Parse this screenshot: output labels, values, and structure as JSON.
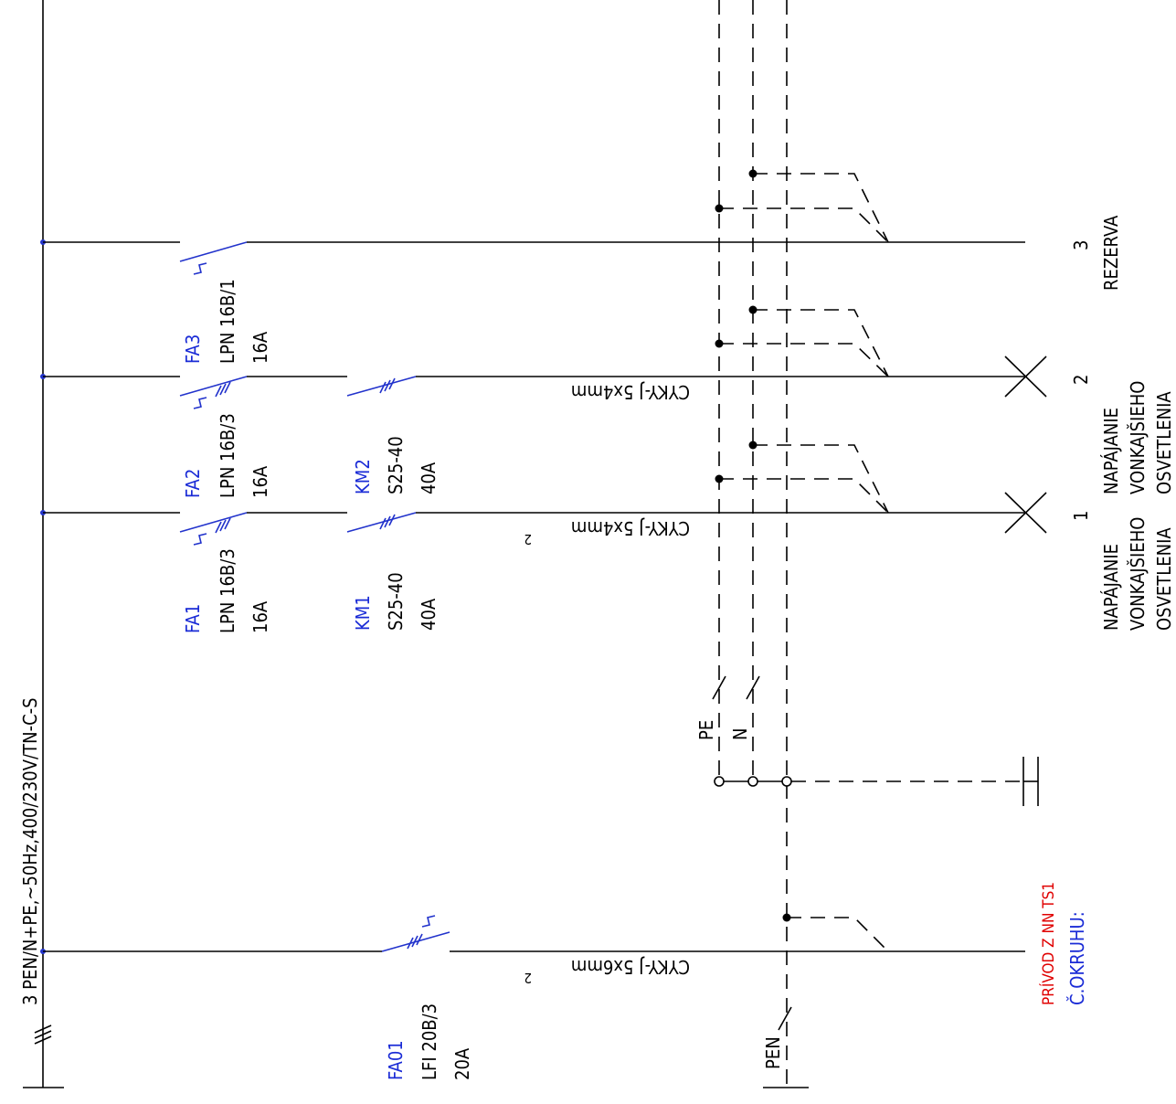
{
  "supply": {
    "label": "3 PEN/N+PE,~50Hz,400/230V/TN-C-S"
  },
  "breakers": [
    {
      "id": "FA1",
      "type": "LPN 16B/3",
      "rating": "16A"
    },
    {
      "id": "FA2",
      "type": "LPN 16B/3",
      "rating": "16A"
    },
    {
      "id": "FA3",
      "type": "LPN 16B/1",
      "rating": "16A"
    }
  ],
  "contactors": [
    {
      "id": "KM1",
      "type": "S25-40",
      "rating": "40A"
    },
    {
      "id": "KM2",
      "type": "S25-40",
      "rating": "40A"
    }
  ],
  "main_breaker": {
    "id": "FA01",
    "type": "LFI 20B/3",
    "rating": "20A"
  },
  "cables": [
    {
      "text": "CYKY-J 5x4mm",
      "sup": "2"
    },
    {
      "text": "CYKY-J 5x4mm",
      "sup": ""
    },
    {
      "text": "CYKY-J 5x6mm",
      "sup": "2"
    }
  ],
  "conductors": {
    "pe": "PE",
    "n": "N",
    "pen": "PEN"
  },
  "circuits": [
    {
      "num": "1",
      "lines": [
        "NAPÁJANIE",
        "VONKAJŠIEHO",
        "OSVETLENIA"
      ]
    },
    {
      "num": "2",
      "lines": [
        "NAPÁJANIE",
        "VONKAJŠIEHO",
        "OSVETLENIA"
      ]
    },
    {
      "num": "3",
      "lines": [
        "REZERVA"
      ]
    }
  ],
  "feeder": {
    "source": "PRÍVOD Z NN TS1",
    "circuit_no": "Č.OKRUHU:"
  },
  "colors": {
    "line": "#000000",
    "device": "#1a2bd6",
    "source": "#e00000"
  }
}
